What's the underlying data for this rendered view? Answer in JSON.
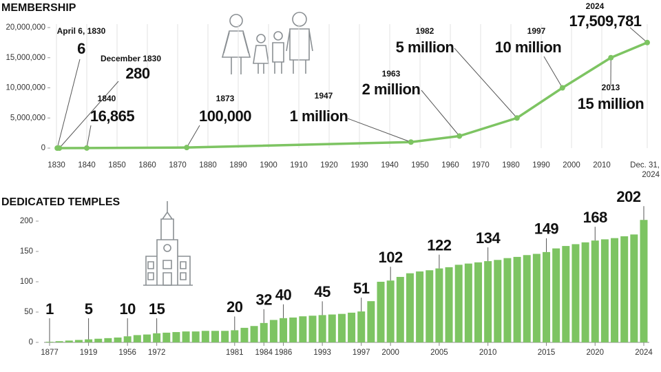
{
  "chart_data": [
    {
      "type": "line",
      "title": "MEMBERSHIP",
      "x": [
        1830.26,
        1830.96,
        1840,
        1873,
        1947,
        1963,
        1982,
        1997,
        2013,
        2024.99
      ],
      "values": [
        6,
        280,
        16865,
        100000,
        1000000,
        2000000,
        5000000,
        10000000,
        15000000,
        17509781
      ],
      "value_labels": [
        "6",
        "280",
        "16,865",
        "100,000",
        "1 million",
        "2 million",
        "5 million",
        "10 million",
        "15 million",
        "17,509,781"
      ],
      "date_labels": [
        "April 6, 1830",
        "December 1830",
        "1840",
        "1873",
        "1947",
        "1963",
        "1982",
        "1997",
        "2013",
        "2024"
      ],
      "color": "#7dc462",
      "xlim": [
        1830,
        2024.99
      ],
      "xticks": [
        1830,
        1840,
        1850,
        1860,
        1870,
        1880,
        1890,
        1900,
        1910,
        1920,
        1930,
        1940,
        1950,
        1960,
        1970,
        1980,
        1990,
        2000,
        2010,
        {
          "value": 2024.99,
          "label": "Dec. 31, 2024"
        }
      ],
      "ylim": [
        0,
        20000000
      ],
      "yticks": [
        0,
        {
          "value": 5000000,
          "label": "5,000,000"
        },
        {
          "value": 10000000,
          "label": "10,000,000"
        },
        {
          "value": 15000000,
          "label": "15,000,000"
        },
        {
          "value": 20000000,
          "label": "20,000,000"
        }
      ],
      "grid": true
    },
    {
      "type": "bar",
      "title": "DEDICATED TEMPLES",
      "categories": [
        "1877",
        null,
        null,
        null,
        "1919",
        null,
        null,
        null,
        "1956",
        null,
        null,
        "1972",
        null,
        null,
        null,
        null,
        null,
        null,
        null,
        "1981",
        null,
        null,
        "1984",
        null,
        "1986",
        null,
        null,
        null,
        "1993",
        null,
        null,
        null,
        "1997",
        null,
        null,
        "2000",
        null,
        null,
        null,
        null,
        "2005",
        null,
        null,
        null,
        null,
        "2010",
        null,
        null,
        null,
        null,
        null,
        "2015",
        null,
        null,
        null,
        null,
        "2020",
        null,
        null,
        null,
        null,
        "2024"
      ],
      "values": [
        1,
        2,
        3,
        4,
        5,
        6,
        7,
        8,
        10,
        12,
        13,
        15,
        16,
        17,
        18,
        18,
        19,
        19,
        19,
        20,
        24,
        27,
        32,
        37,
        40,
        41,
        43,
        44,
        45,
        46,
        47,
        49,
        51,
        68,
        100,
        102,
        108,
        114,
        117,
        119,
        122,
        124,
        128,
        130,
        132,
        134,
        136,
        139,
        141,
        144,
        146,
        149,
        155,
        159,
        162,
        165,
        168,
        170,
        172,
        175,
        178,
        202
      ],
      "value_labels": [
        "1",
        null,
        null,
        null,
        "5",
        null,
        null,
        null,
        "10",
        null,
        null,
        "15",
        null,
        null,
        null,
        null,
        null,
        null,
        null,
        "20",
        null,
        null,
        "32",
        null,
        "40",
        null,
        null,
        null,
        "45",
        null,
        null,
        null,
        "51",
        null,
        null,
        "102",
        null,
        null,
        null,
        null,
        "122",
        null,
        null,
        null,
        null,
        "134",
        null,
        null,
        null,
        null,
        null,
        "149",
        null,
        null,
        null,
        null,
        "168",
        null,
        null,
        null,
        null,
        "202"
      ],
      "color": "#7dc462",
      "ylim": [
        0,
        200
      ],
      "yticks": [
        0,
        50,
        100,
        150,
        200
      ]
    }
  ]
}
